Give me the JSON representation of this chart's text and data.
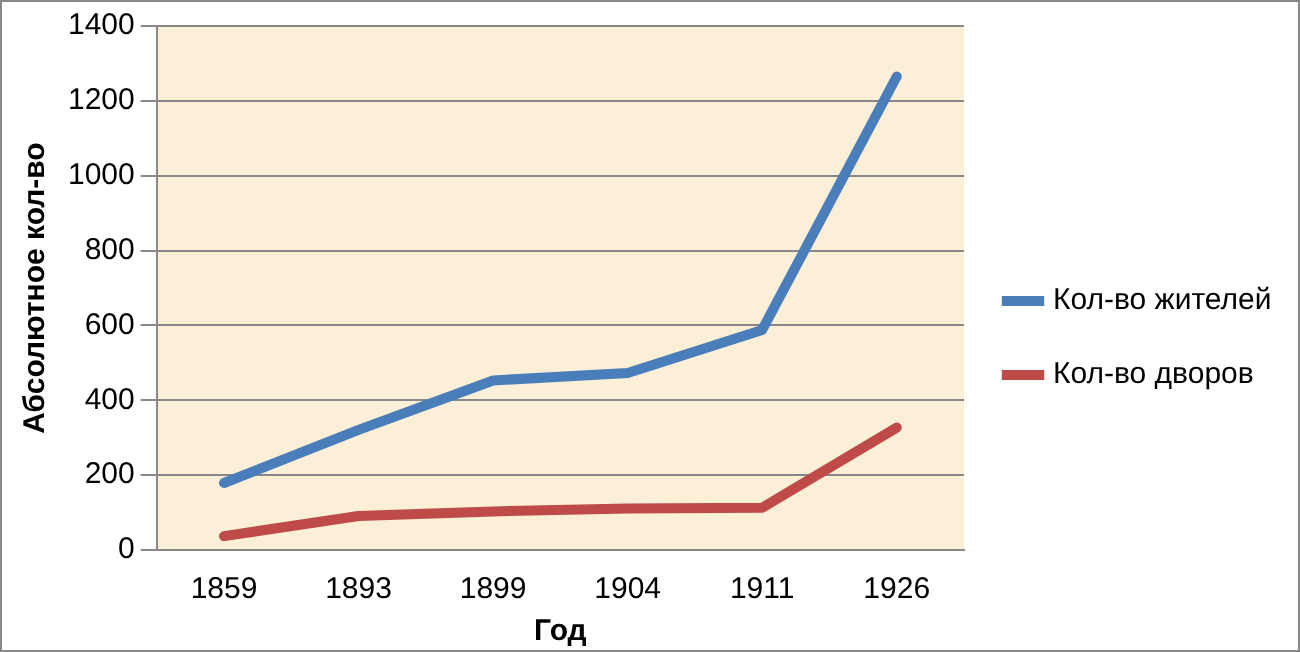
{
  "chart_data": {
    "type": "line",
    "xlabel": "Год",
    "ylabel": "Абсолютное кол-во",
    "categories": [
      "1859",
      "1893",
      "1899",
      "1904",
      "1911",
      "1926"
    ],
    "series": [
      {
        "name": "Кол-во жителей",
        "color": "#4a7ebb",
        "values": [
          179,
          321,
          453,
          473,
          588,
          1265
        ]
      },
      {
        "name": "Кол-во дворов",
        "color": "#be4b48",
        "values": [
          37,
          91,
          103,
          111,
          113,
          327
        ]
      }
    ],
    "ylim": [
      0,
      1400
    ],
    "yticks": [
      0,
      200,
      400,
      600,
      800,
      1000,
      1200,
      1400
    ],
    "grid": "y",
    "legend": "right",
    "marker": "none",
    "line_style": "solid"
  }
}
